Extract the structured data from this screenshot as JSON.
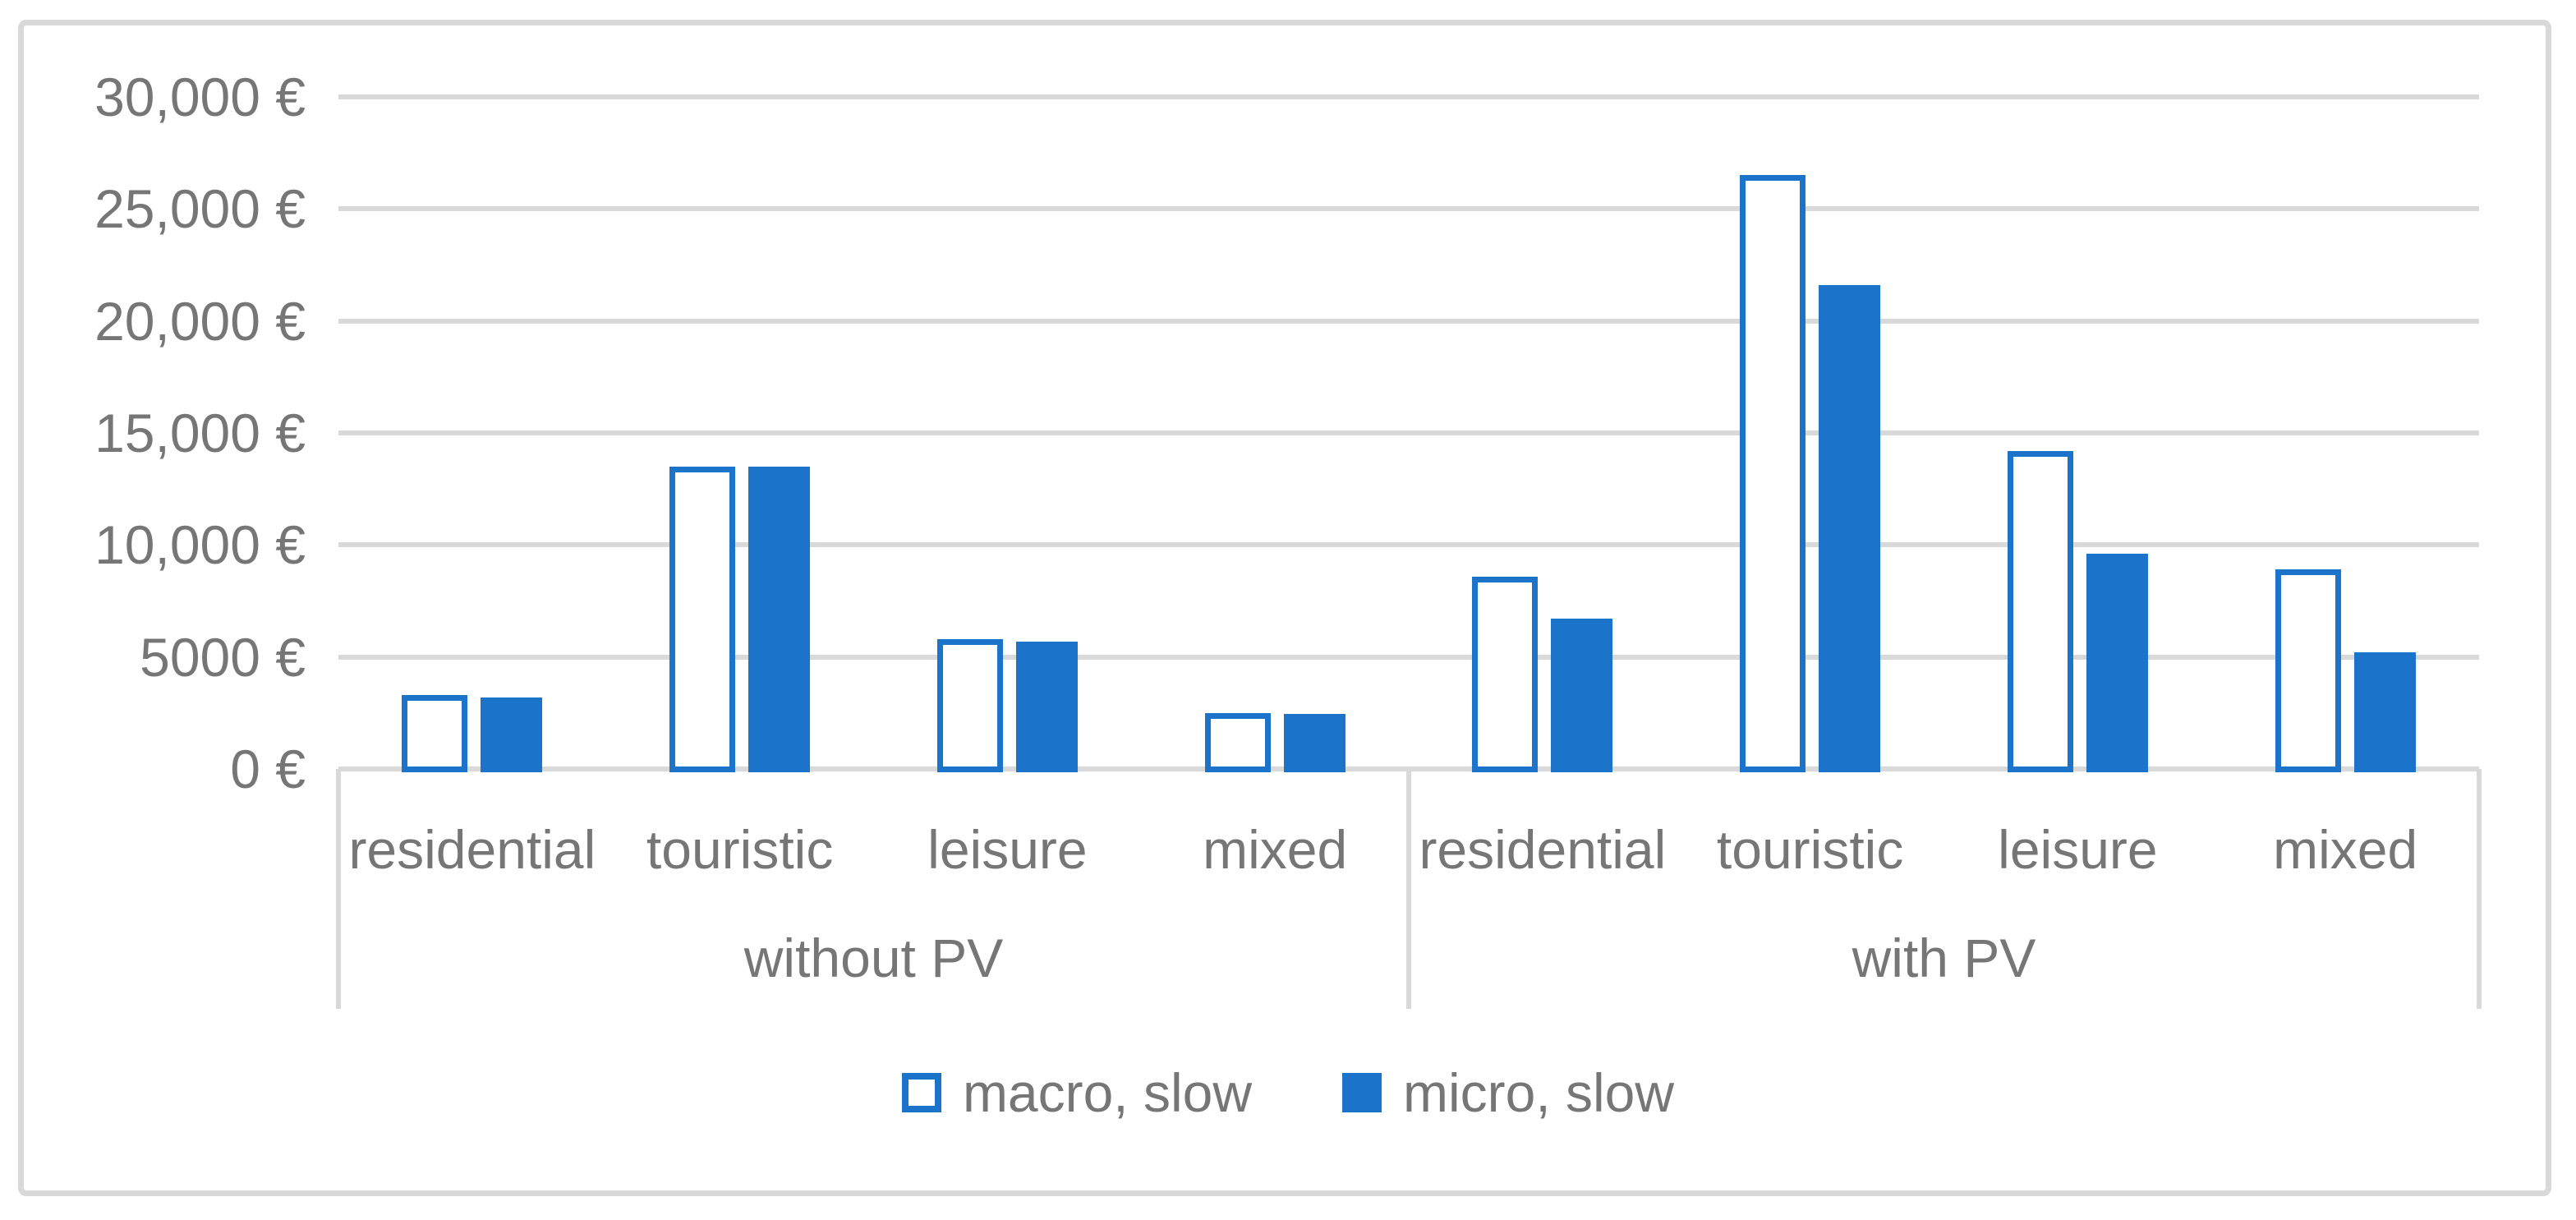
{
  "chart": {
    "colors": {
      "bar_blue": "#1b74c9",
      "gridline": "#d9d9d9",
      "outer_border": "#d9d9d9",
      "label_text": "#767676",
      "background": "#ffffff"
    }
  },
  "chart_data": {
    "type": "bar",
    "title": "",
    "xlabel": "",
    "ylabel": "",
    "y_unit": "€",
    "ylim": [
      0,
      30000
    ],
    "ytick_step": 5000,
    "ytick_labels": [
      "0 €",
      "5000 €",
      "10,000 €",
      "15,000 €",
      "20,000 €",
      "25,000 €",
      "30,000 €"
    ],
    "grid": true,
    "legend_position": "bottom-center",
    "groups": [
      {
        "label": "without PV",
        "categories": [
          "residential",
          "touristic",
          "leisure",
          "mixed"
        ]
      },
      {
        "label": "with PV",
        "categories": [
          "residential",
          "touristic",
          "leisure",
          "mixed"
        ]
      }
    ],
    "series": [
      {
        "name": "macro, slow",
        "style": "outline",
        "values": [
          [
            3300,
            13500,
            5800,
            2500
          ],
          [
            8600,
            26500,
            14200,
            8900
          ]
        ]
      },
      {
        "name": "micro, slow",
        "style": "solid",
        "values": [
          [
            3200,
            13500,
            5700,
            2450
          ],
          [
            6700,
            21600,
            9600,
            5200
          ]
        ]
      }
    ]
  }
}
